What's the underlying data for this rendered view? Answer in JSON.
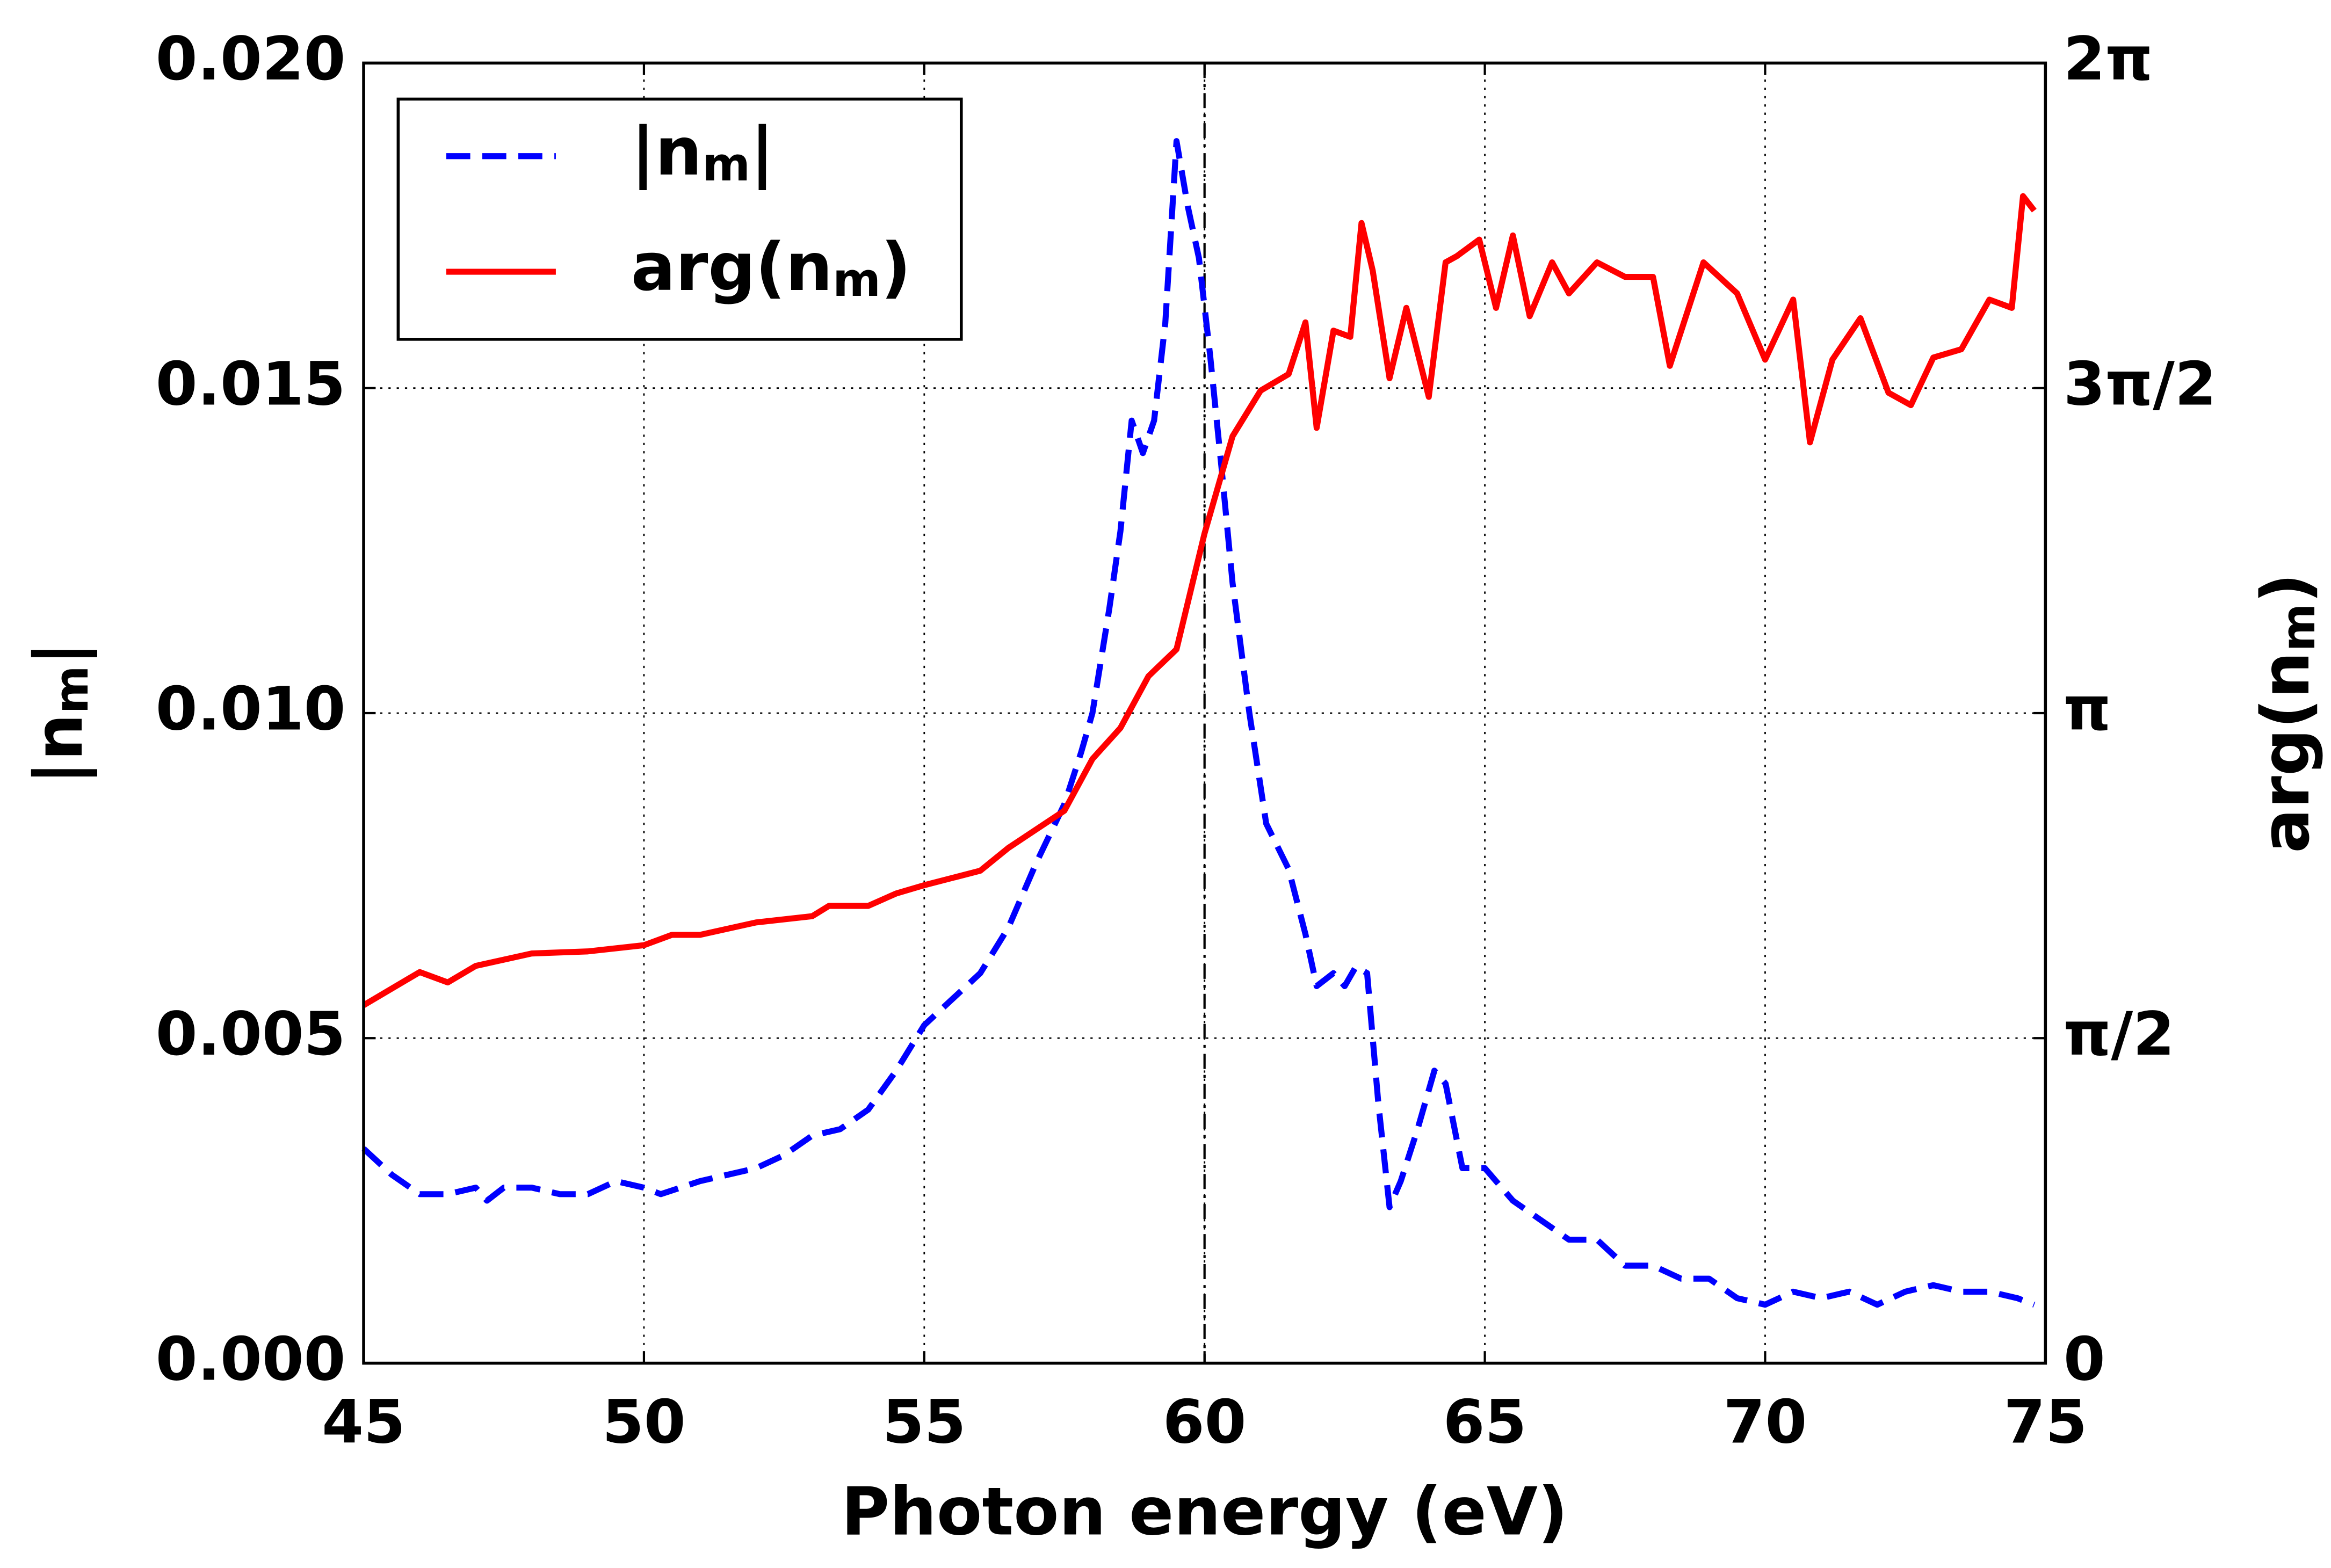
{
  "chart_data": {
    "type": "line",
    "xlabel": "Photon energy (eV)",
    "ylabel": "|n_m|",
    "y2label": "arg(n_m)",
    "xlim": [
      45,
      75
    ],
    "xticks": [
      45,
      50,
      55,
      60,
      65,
      70,
      75
    ],
    "ylim": [
      0,
      0.02
    ],
    "yticks": [
      {
        "value": 0,
        "label": "0.000"
      },
      {
        "value": 0.005,
        "label": "0.005"
      },
      {
        "value": 0.01,
        "label": "0.010"
      },
      {
        "value": 0.015,
        "label": "0.015"
      },
      {
        "value": 0.02,
        "label": "0.020"
      }
    ],
    "y2lim": [
      0,
      6.2832
    ],
    "y2ticks": [
      {
        "value": 0,
        "label": "0"
      },
      {
        "value": 1.5708,
        "label": "π/2"
      },
      {
        "value": 3.1416,
        "label": "π"
      },
      {
        "value": 4.7124,
        "label": "3π/2"
      },
      {
        "value": 6.2832,
        "label": "2π"
      }
    ],
    "grid": true,
    "legend": "upper left",
    "vline": 60,
    "series": [
      {
        "name": "|n_m|",
        "color": "#0000ff",
        "dash": true,
        "x": [
          45,
          45.5,
          46,
          46.5,
          47,
          47.2,
          47.5,
          48,
          48.5,
          49,
          49.5,
          50,
          50.3,
          51,
          51.5,
          52,
          52.5,
          53,
          53.5,
          54,
          54.5,
          55,
          55.5,
          56,
          56.5,
          57,
          57.5,
          57.8,
          58,
          58.3,
          58.5,
          58.7,
          58.9,
          59.1,
          59.3,
          59.5,
          59.7,
          59.9,
          60.1,
          60.3,
          60.5,
          60.8,
          61.1,
          61.5,
          61.8,
          62,
          62.3,
          62.5,
          62.7,
          62.9,
          63.1,
          63.3,
          63.5,
          63.8,
          64.1,
          64.3,
          64.6,
          65,
          65.5,
          66,
          66.5,
          67,
          67.5,
          68,
          68.5,
          69,
          69.5,
          70,
          70.5,
          71,
          71.5,
          72,
          72.5,
          73,
          73.5,
          74,
          74.5,
          74.8
        ],
        "values": [
          0.0033,
          0.0029,
          0.0026,
          0.0026,
          0.0027,
          0.0025,
          0.0027,
          0.0027,
          0.0026,
          0.0026,
          0.0028,
          0.0027,
          0.0026,
          0.0028,
          0.0029,
          0.003,
          0.0032,
          0.0035,
          0.0036,
          0.0039,
          0.0045,
          0.0052,
          0.0056,
          0.006,
          0.0067,
          0.0077,
          0.0086,
          0.0094,
          0.01,
          0.0116,
          0.0128,
          0.0145,
          0.014,
          0.0145,
          0.016,
          0.0188,
          0.0178,
          0.017,
          0.0155,
          0.0138,
          0.012,
          0.01,
          0.0083,
          0.0076,
          0.0066,
          0.0058,
          0.006,
          0.0058,
          0.0061,
          0.006,
          0.004,
          0.0024,
          0.0028,
          0.0036,
          0.0045,
          0.0043,
          0.003,
          0.003,
          0.0025,
          0.0022,
          0.0019,
          0.0019,
          0.0015,
          0.0015,
          0.0013,
          0.0013,
          0.001,
          0.0009,
          0.0011,
          0.001,
          0.0011,
          0.0009,
          0.0011,
          0.0012,
          0.0011,
          0.0011,
          0.001,
          0.0009
        ]
      },
      {
        "name": "arg(n_m)",
        "color": "#ff0000",
        "axis": "y2",
        "x": [
          45,
          46,
          46.5,
          47,
          48,
          49,
          50,
          50.5,
          51,
          52,
          53,
          53.3,
          54,
          54.5,
          55,
          56,
          56.5,
          57,
          57.5,
          58,
          58.5,
          59,
          59.5,
          60,
          60.5,
          61,
          61.5,
          61.8,
          62,
          62.3,
          62.6,
          62.8,
          63,
          63.3,
          63.6,
          64,
          64.3,
          64.5,
          64.9,
          65.2,
          65.5,
          65.8,
          66.2,
          66.5,
          67,
          67.5,
          68,
          68.3,
          68.9,
          69.5,
          70,
          70.5,
          70.8,
          71.2,
          71.7,
          72.2,
          72.6,
          73,
          73.5,
          74,
          74.4,
          74.6,
          74.8
        ],
        "values": [
          1.73,
          1.89,
          1.84,
          1.92,
          1.98,
          1.99,
          2.02,
          2.07,
          2.07,
          2.13,
          2.16,
          2.21,
          2.21,
          2.27,
          2.31,
          2.38,
          2.49,
          2.58,
          2.67,
          2.92,
          3.07,
          3.32,
          3.45,
          4.01,
          4.48,
          4.7,
          4.78,
          5.03,
          4.52,
          4.99,
          4.96,
          5.51,
          5.28,
          4.76,
          5.1,
          4.67,
          5.32,
          5.35,
          5.43,
          5.1,
          5.45,
          5.06,
          5.32,
          5.17,
          5.32,
          5.25,
          5.25,
          4.82,
          5.32,
          5.17,
          4.85,
          5.14,
          4.45,
          4.85,
          5.05,
          4.69,
          4.63,
          4.86,
          4.9,
          5.14,
          5.1,
          5.64,
          5.57
        ]
      }
    ]
  }
}
